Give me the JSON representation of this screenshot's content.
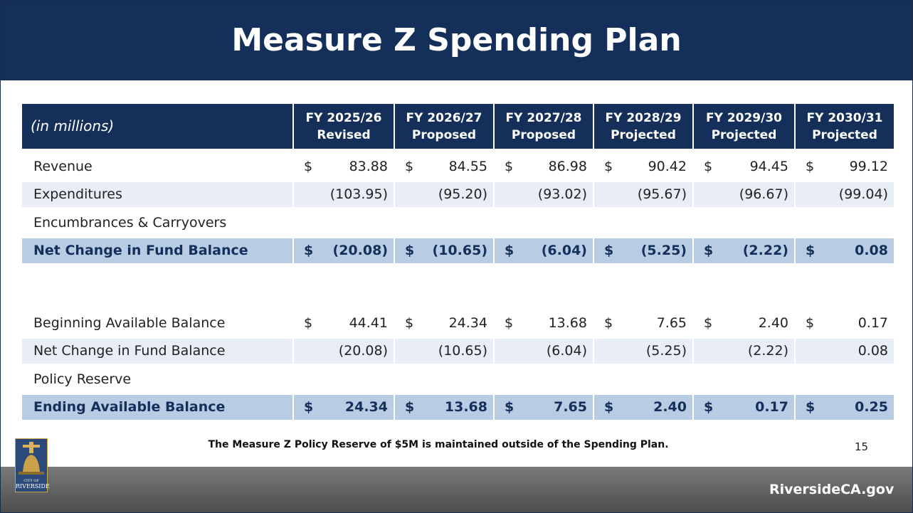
{
  "header": {
    "title": "Measure Z Spending Plan"
  },
  "table": {
    "unit_note": "(in  millions)",
    "columns": [
      {
        "year": "FY 2025/26",
        "status": "Revised"
      },
      {
        "year": "FY 2026/27",
        "status": "Proposed"
      },
      {
        "year": "FY 2027/28",
        "status": "Proposed"
      },
      {
        "year": "FY 2028/29",
        "status": "Projected"
      },
      {
        "year": "FY 2029/30",
        "status": "Projected"
      },
      {
        "year": "FY 2030/31",
        "status": "Projected"
      }
    ],
    "sections": [
      {
        "rows": [
          {
            "label": "Revenue",
            "cells": [
              {
                "cur": "$",
                "amt": "83.88"
              },
              {
                "cur": "$",
                "amt": "84.55"
              },
              {
                "cur": "$",
                "amt": "86.98"
              },
              {
                "cur": "$",
                "amt": "90.42"
              },
              {
                "cur": "$",
                "amt": "94.45"
              },
              {
                "cur": "$",
                "amt": "99.12"
              }
            ]
          },
          {
            "label": "Expenditures",
            "cells": [
              {
                "amt": "(103.95)"
              },
              {
                "amt": "(95.20)"
              },
              {
                "amt": "(93.02)"
              },
              {
                "amt": "(95.67)"
              },
              {
                "amt": "(96.67)"
              },
              {
                "amt": "(99.04)"
              }
            ]
          },
          {
            "label": "Encumbrances & Carryovers"
          },
          {
            "label": "Net Change in Fund Balance",
            "bold": true,
            "cells": [
              {
                "cur": "$",
                "amt": "(20.08)"
              },
              {
                "cur": "$",
                "amt": "(10.65)"
              },
              {
                "cur": "$",
                "amt": "(6.04)"
              },
              {
                "cur": "$",
                "amt": "(5.25)"
              },
              {
                "cur": "$",
                "amt": "(2.22)"
              },
              {
                "cur": "$",
                "amt": "0.08"
              }
            ]
          }
        ]
      },
      {
        "rows": [
          {
            "label": "Beginning Available Balance",
            "cells": [
              {
                "cur": "$",
                "amt": "44.41"
              },
              {
                "cur": "$",
                "amt": "24.34"
              },
              {
                "cur": "$",
                "amt": "13.68"
              },
              {
                "cur": "$",
                "amt": "7.65"
              },
              {
                "cur": "$",
                "amt": "2.40"
              },
              {
                "cur": "$",
                "amt": "0.17"
              }
            ]
          },
          {
            "label": "Net Change in Fund Balance",
            "cells": [
              {
                "amt": "(20.08)"
              },
              {
                "amt": "(10.65)"
              },
              {
                "amt": "(6.04)"
              },
              {
                "amt": "(5.25)"
              },
              {
                "amt": "(2.22)"
              },
              {
                "amt": "0.08"
              }
            ]
          },
          {
            "label": "Policy Reserve"
          },
          {
            "label": "Ending Available Balance",
            "bold": true,
            "cells": [
              {
                "cur": "$",
                "amt": "24.34"
              },
              {
                "cur": "$",
                "amt": "13.68"
              },
              {
                "cur": "$",
                "amt": "7.65"
              },
              {
                "cur": "$",
                "amt": "2.40"
              },
              {
                "cur": "$",
                "amt": "0.17"
              },
              {
                "cur": "$",
                "amt": "0.25"
              }
            ]
          }
        ]
      }
    ]
  },
  "footnote": "The Measure Z Policy Reserve of $5M is maintained outside of the Spending Plan.",
  "page_number": "15",
  "logo": {
    "top": "CITY OF",
    "name": "RIVERSIDE"
  },
  "footer": {
    "site": "RiversideCA.gov"
  }
}
